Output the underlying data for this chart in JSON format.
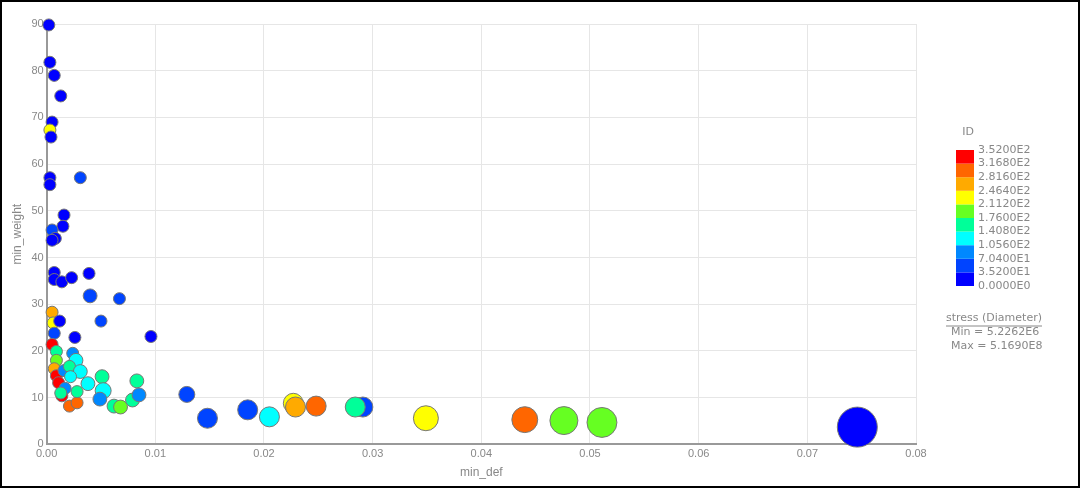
{
  "chart_data": {
    "type": "bubble",
    "xlabel": "min_def",
    "ylabel": "min_weight",
    "clabel": "ID",
    "legend_title": "stress (Diameter)",
    "annotations": [
      "Min = 5.2262E6",
      "Max = 5.1690E8"
    ],
    "x": [
      0.0002,
      0.0003,
      0.0007,
      0.0013,
      0.0005,
      0.0003,
      0.0004,
      0.0003,
      0.0003,
      0.0031,
      0.0016,
      0.0015,
      0.0005,
      0.0008,
      0.0005,
      0.0007,
      0.0007,
      0.0014,
      0.0023,
      0.0039,
      0.004,
      0.0067,
      0.005,
      0.0096,
      0.0026,
      0.0005,
      0.0006,
      0.0012,
      0.0007,
      0.0005,
      0.0009,
      0.0009,
      0.0007,
      0.0009,
      0.0011,
      0.0014,
      0.0021,
      0.0028,
      0.0024,
      0.0027,
      0.0016,
      0.0021,
      0.0031,
      0.0022,
      0.0038,
      0.0028,
      0.0051,
      0.0052,
      0.0049,
      0.0062,
      0.0068,
      0.0079,
      0.0083,
      0.0085,
      0.0017,
      0.0013,
      0.0129,
      0.0148,
      0.0185,
      0.0205,
      0.0227,
      0.0229,
      0.0248,
      0.0291,
      0.0284,
      0.0349,
      0.044,
      0.0476,
      0.0511,
      0.0746
    ],
    "values": [
      89.8,
      81.8,
      79.0,
      74.6,
      69.0,
      67.3,
      65.8,
      57.1,
      55.6,
      57.1,
      49.1,
      46.7,
      45.9,
      44.1,
      43.7,
      36.8,
      35.3,
      34.8,
      35.7,
      36.6,
      31.8,
      31.2,
      26.4,
      23.1,
      22.9,
      28.3,
      26.0,
      26.4,
      23.8,
      21.4,
      19.9,
      18.0,
      16.2,
      14.7,
      13.2,
      10.4,
      8.2,
      8.9,
      19.5,
      18.0,
      15.8,
      16.7,
      15.6,
      14.5,
      13.0,
      11.3,
      14.5,
      11.5,
      9.7,
      8.2,
      8.0,
      9.5,
      13.6,
      10.6,
      12.0,
      11.0,
      10.7,
      5.6,
      7.4,
      5.9,
      8.8,
      8.0,
      8.2,
      8.0,
      8.0,
      5.6,
      5.3,
      5.1,
      4.7,
      3.7
    ],
    "sizes": [
      0.09,
      0.09,
      0.09,
      0.09,
      0.09,
      0.09,
      0.09,
      0.09,
      0.09,
      0.09,
      0.09,
      0.09,
      0.09,
      0.09,
      0.09,
      0.09,
      0.09,
      0.09,
      0.09,
      0.09,
      0.12,
      0.09,
      0.09,
      0.09,
      0.09,
      0.09,
      0.09,
      0.09,
      0.09,
      0.09,
      0.09,
      0.09,
      0.09,
      0.09,
      0.09,
      0.09,
      0.09,
      0.09,
      0.09,
      0.12,
      0.09,
      0.09,
      0.12,
      0.09,
      0.12,
      0.09,
      0.12,
      0.16,
      0.12,
      0.12,
      0.12,
      0.12,
      0.12,
      0.12,
      0.09,
      0.09,
      0.16,
      0.25,
      0.25,
      0.25,
      0.25,
      0.25,
      0.25,
      0.25,
      0.25,
      0.39,
      0.42,
      0.49,
      0.56,
      1
    ],
    "cvalues": [
      17.6,
      17.6,
      17.6,
      17.6,
      17.6,
      228.8,
      17.6,
      17.6,
      17.6,
      52.8,
      17.6,
      17.6,
      52.8,
      17.6,
      17.6,
      17.6,
      17.6,
      17.6,
      17.6,
      17.6,
      52.8,
      52.8,
      52.8,
      17.6,
      17.6,
      264,
      228.8,
      17.6,
      52.8,
      334.4,
      158.4,
      193.6,
      264,
      334.4,
      334.4,
      334.4,
      299.2,
      299.2,
      88,
      123.2,
      88,
      158.4,
      123.2,
      123.2,
      123.2,
      158.4,
      158.4,
      123.2,
      88,
      158.4,
      193.6,
      158.4,
      158.4,
      88,
      88,
      158.4,
      52.8,
      52.8,
      52.8,
      123.2,
      228.8,
      264,
      299.2,
      52.8,
      158.4,
      228.8,
      299.2,
      193.6,
      193.6,
      17.6
    ],
    "clim": [
      0,
      352
    ],
    "cticks": [
      {
        "value": 0,
        "label": "0.0000E0"
      },
      {
        "value": 35.2,
        "label": "3.5200E1"
      },
      {
        "value": 70.4,
        "label": "7.0400E1"
      },
      {
        "value": 105.6,
        "label": "1.0560E2"
      },
      {
        "value": 140.8,
        "label": "1.4080E2"
      },
      {
        "value": 176,
        "label": "1.7600E2"
      },
      {
        "value": 211.2,
        "label": "2.1120E2"
      },
      {
        "value": 246.4,
        "label": "2.4640E2"
      },
      {
        "value": 281.6,
        "label": "2.8160E2"
      },
      {
        "value": 316.8,
        "label": "3.1680E2"
      },
      {
        "value": 352,
        "label": "3.5200E2"
      }
    ],
    "xlim": [
      0,
      0.08
    ],
    "xticks": [
      {
        "value": 0,
        "label": "0.00"
      },
      {
        "value": 0.01,
        "label": "0.01"
      },
      {
        "value": 0.02,
        "label": "0.02"
      },
      {
        "value": 0.03,
        "label": "0.03"
      },
      {
        "value": 0.04,
        "label": "0.04"
      },
      {
        "value": 0.05,
        "label": "0.05"
      },
      {
        "value": 0.06,
        "label": "0.06"
      },
      {
        "value": 0.07,
        "label": "0.07"
      },
      {
        "value": 0.08,
        "label": "0.08"
      }
    ],
    "ylim": [
      0,
      90
    ],
    "yticks": [
      0,
      10,
      20,
      30,
      40,
      50,
      60,
      70,
      80,
      90
    ],
    "grid": true,
    "marker": "circle",
    "legend": false
  }
}
